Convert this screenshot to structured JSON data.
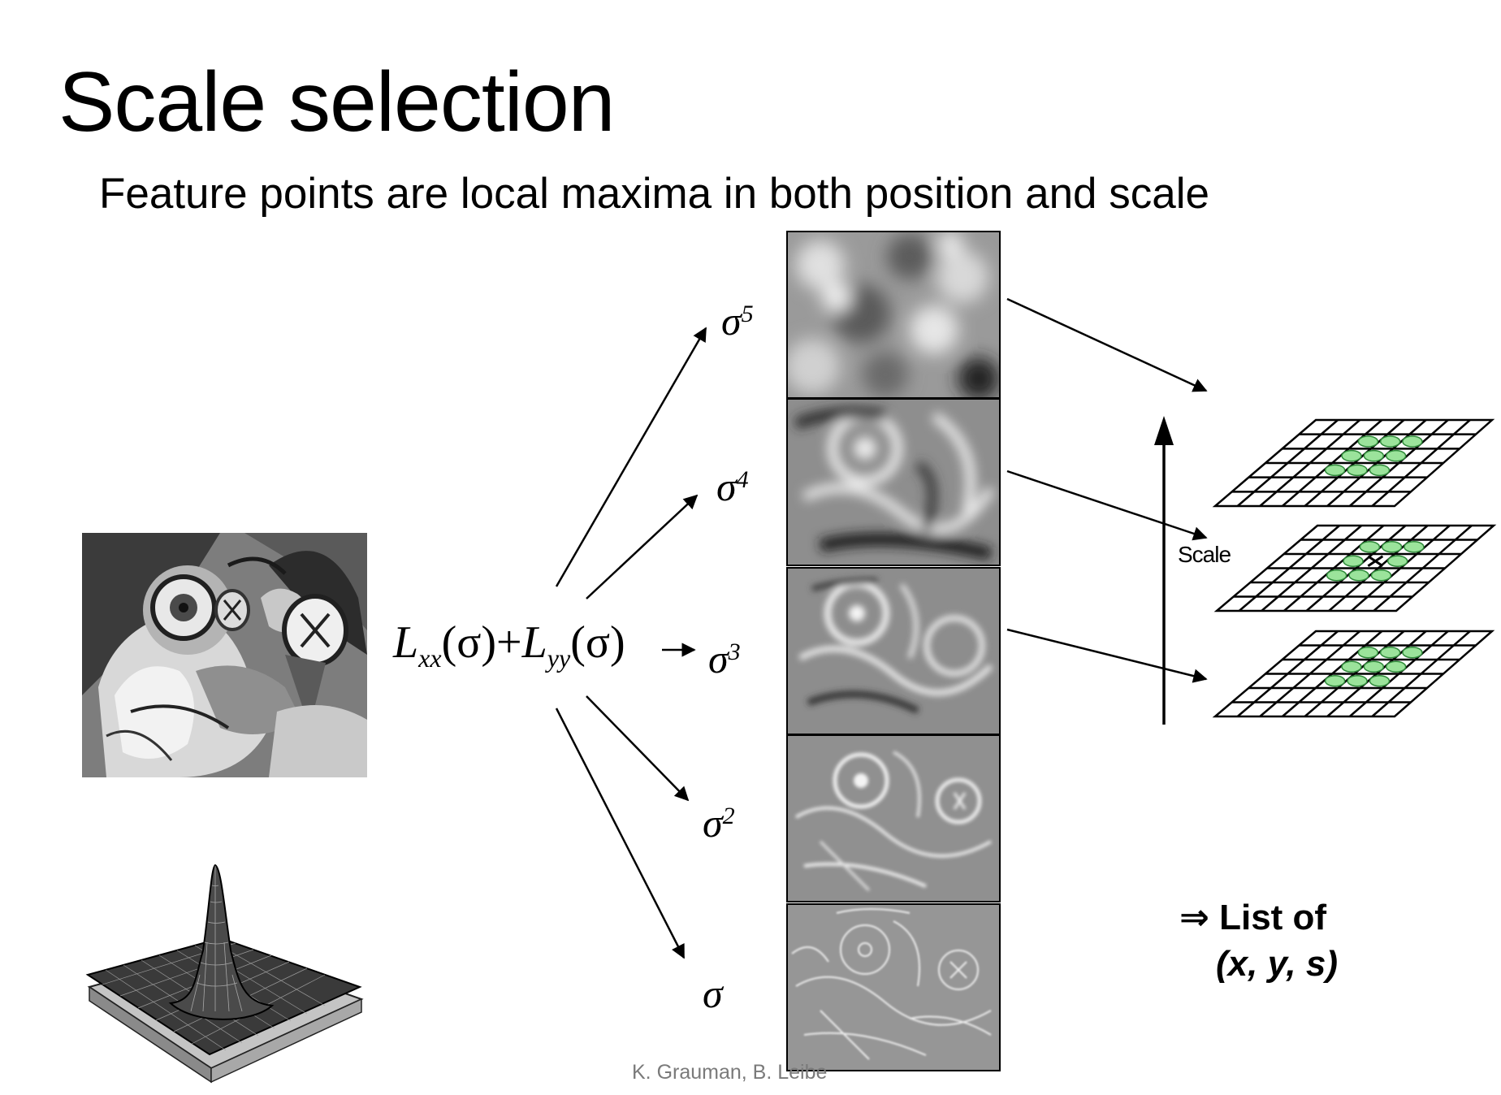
{
  "slide": {
    "title": "Scale selection",
    "subtitle": "Feature points are local maxima in both position and scale",
    "credit": "K. Grauman, B. Leibe"
  },
  "formula": {
    "term1_letter": "L",
    "term1_sub": "xx",
    "term1_arg": "(σ)",
    "operator": "+",
    "term2_letter": "L",
    "term2_sub": "yy",
    "term2_arg": "(σ)"
  },
  "scales": [
    {
      "base": "σ",
      "exp": "5"
    },
    {
      "base": "σ",
      "exp": "4"
    },
    {
      "base": "σ",
      "exp": "3"
    },
    {
      "base": "σ",
      "exp": "2"
    },
    {
      "base": "σ",
      "exp": ""
    }
  ],
  "scale_axis_label": "Scale",
  "result": {
    "arrow": "⇒",
    "line1": "List of",
    "line2": "(x, y, s)"
  },
  "colors": {
    "keypoint_fill": "#9be39b",
    "keypoint_stroke": "#2f8a3a",
    "credit_text": "#7a7a7a"
  }
}
